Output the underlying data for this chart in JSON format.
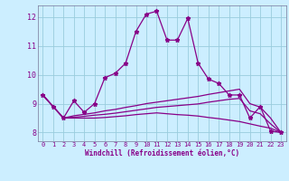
{
  "xlabel": "Windchill (Refroidissement éolien,°C)",
  "background_color": "#cceeff",
  "grid_color": "#99ccdd",
  "line_color": "#880088",
  "ylim": [
    7.7,
    12.4
  ],
  "xlim": [
    -0.5,
    23.5
  ],
  "x_ticks": [
    0,
    1,
    2,
    3,
    4,
    5,
    6,
    7,
    8,
    9,
    10,
    11,
    12,
    13,
    14,
    15,
    16,
    17,
    18,
    19,
    20,
    21,
    22,
    23
  ],
  "y_ticks": [
    8,
    9,
    10,
    11,
    12
  ],
  "curve1_x": [
    0,
    1,
    2,
    3,
    4,
    5,
    6,
    7,
    8,
    9,
    10,
    11,
    12,
    13,
    14,
    15,
    16,
    17,
    18,
    19,
    20,
    21,
    22,
    23
  ],
  "curve1_y": [
    9.3,
    8.9,
    8.5,
    9.1,
    8.7,
    9.0,
    9.9,
    10.05,
    10.4,
    11.5,
    12.1,
    12.2,
    11.2,
    11.2,
    11.95,
    10.4,
    9.85,
    9.7,
    9.3,
    9.3,
    8.5,
    8.9,
    8.05,
    8.0
  ],
  "curve2_y": [
    9.3,
    8.9,
    8.5,
    8.58,
    8.63,
    8.68,
    8.75,
    8.8,
    8.87,
    8.93,
    9.0,
    9.05,
    9.1,
    9.15,
    9.2,
    9.25,
    9.32,
    9.38,
    9.44,
    9.5,
    9.0,
    8.88,
    8.5,
    8.0
  ],
  "curve3_y": [
    9.3,
    8.9,
    8.5,
    8.53,
    8.56,
    8.6,
    8.63,
    8.67,
    8.72,
    8.77,
    8.82,
    8.87,
    8.9,
    8.93,
    8.96,
    8.99,
    9.05,
    9.1,
    9.15,
    9.18,
    8.75,
    8.65,
    8.3,
    8.0
  ],
  "curve4_y": [
    9.3,
    8.9,
    8.5,
    8.5,
    8.5,
    8.5,
    8.52,
    8.55,
    8.58,
    8.62,
    8.65,
    8.68,
    8.65,
    8.62,
    8.6,
    8.57,
    8.52,
    8.48,
    8.43,
    8.38,
    8.3,
    8.22,
    8.15,
    8.0
  ]
}
